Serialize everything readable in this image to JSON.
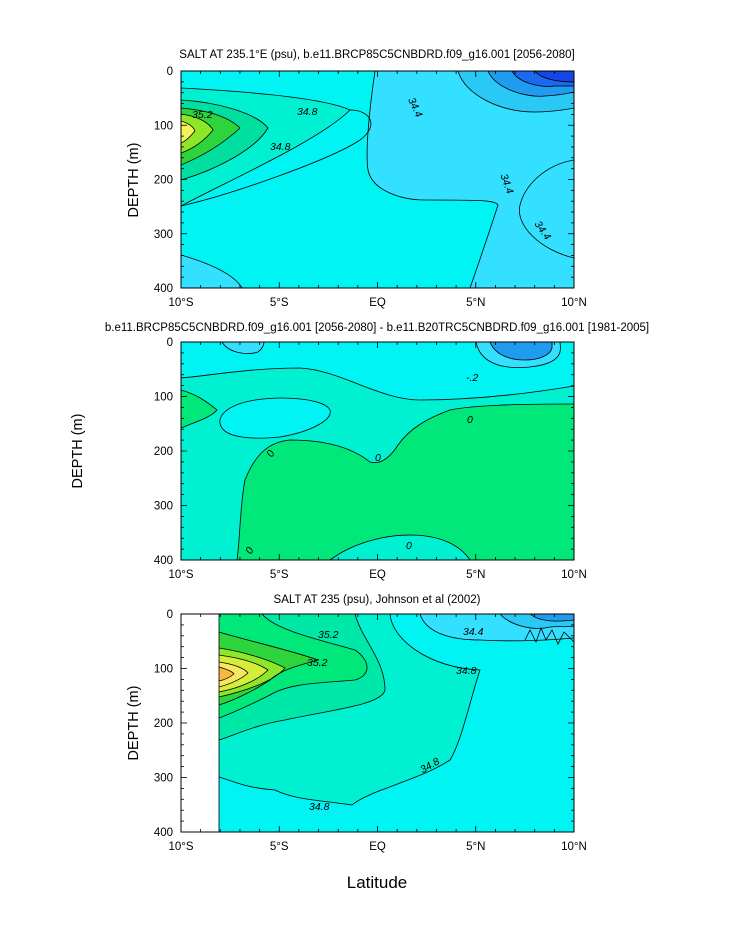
{
  "chart_data": [
    {
      "type": "contour",
      "title": "SALT AT 235.1°E (psu), b.e11.BRCP85C5CNBDRD.f09_g16.001 [2056-2080]",
      "ylabel": "DEPTH (m)",
      "xlabel": "",
      "x_ticks": [
        "10°S",
        "5°S",
        "EQ",
        "5°N",
        "10°N"
      ],
      "y_ticks": [
        "0",
        "100",
        "200",
        "300",
        "400"
      ],
      "xlim": [
        -10,
        10
      ],
      "ylim": [
        400,
        0
      ],
      "contour_labels": [
        "35.2",
        "34.8",
        "34.8",
        "34.4",
        "34.4",
        "34.4"
      ]
    },
    {
      "type": "contour",
      "title": "b.e11.BRCP85C5CNBDRD.f09_g16.001 [2056-2080] - b.e11.B20TRC5CNBDRD.f09_g16.001 [1981-2005]",
      "ylabel": "DEPTH (m)",
      "xlabel": "",
      "x_ticks": [
        "10°S",
        "5°S",
        "EQ",
        "5°N",
        "10°N"
      ],
      "y_ticks": [
        "0",
        "100",
        "200",
        "300",
        "400"
      ],
      "xlim": [
        -10,
        10
      ],
      "ylim": [
        400,
        0
      ],
      "contour_labels": [
        "-.2",
        "0",
        "0",
        "0",
        "0",
        "0"
      ]
    },
    {
      "type": "contour",
      "title": "SALT AT 235 (psu), Johnson et al (2002)",
      "ylabel": "DEPTH (m)",
      "xlabel": "Latitude",
      "x_ticks": [
        "10°S",
        "5°S",
        "EQ",
        "5°N",
        "10°N"
      ],
      "y_ticks": [
        "0",
        "100",
        "200",
        "300",
        "400"
      ],
      "xlim": [
        -10,
        10
      ],
      "ylim": [
        400,
        0
      ],
      "contour_labels": [
        "35.2",
        "35.2",
        "34.4",
        "34.8",
        "34.8",
        "34.8"
      ]
    }
  ]
}
